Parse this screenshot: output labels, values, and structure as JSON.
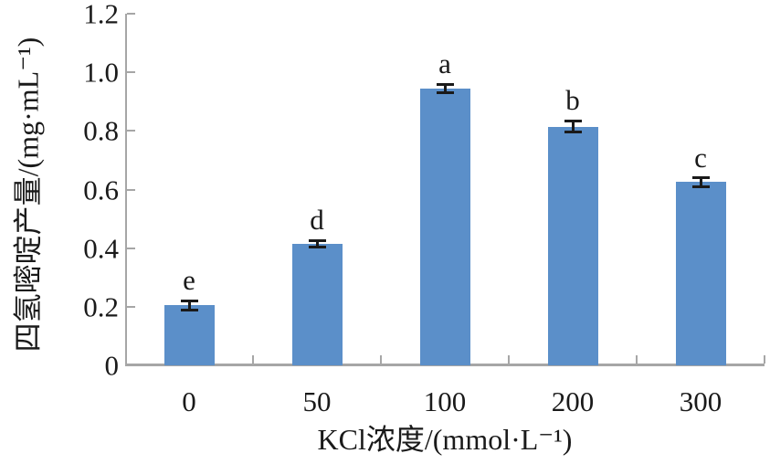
{
  "chart_data": {
    "type": "bar",
    "title": "",
    "categories": [
      "0",
      "50",
      "100",
      "200",
      "300"
    ],
    "values": [
      0.205,
      0.415,
      0.945,
      0.815,
      0.625
    ],
    "error_bars": [
      0.015,
      0.012,
      0.015,
      0.02,
      0.015
    ],
    "bar_letters": [
      "e",
      "d",
      "a",
      "b",
      "c"
    ],
    "xlabel": "KCl浓度/(mmol·L⁻¹)",
    "ylabel": "四氢嘧啶产量/(mg·mL⁻¹)",
    "ylim": [
      0,
      1.2
    ],
    "ytick_labels": [
      "0",
      "0.2",
      "0.4",
      "0.6",
      "0.8",
      "1.0",
      "1.2"
    ],
    "ytick_values": [
      0,
      0.2,
      0.4,
      0.6,
      0.8,
      1.0,
      1.2
    ],
    "grid": "off",
    "legend": "none",
    "colors": {
      "bar_fill": "#5B8FC9",
      "axis": "#A6A6A6",
      "text": "#1A1A1A",
      "error_bar": "#1A1A1A"
    }
  }
}
